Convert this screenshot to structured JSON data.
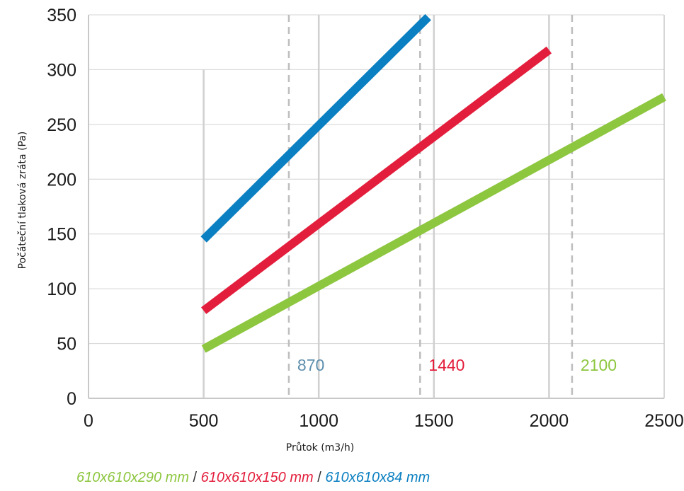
{
  "chart_data": {
    "type": "line",
    "xlabel": "Průtok (m3/h)",
    "ylabel": "Počáteční tlaková zráta (Pa)",
    "xlim": [
      0,
      2500
    ],
    "ylim": [
      0,
      350
    ],
    "xticks": [
      0,
      500,
      1000,
      1500,
      2000,
      2500
    ],
    "yticks": [
      0,
      50,
      100,
      150,
      200,
      250,
      300,
      350
    ],
    "grid": {
      "horizontal": true,
      "vertical": true
    },
    "series": [
      {
        "name": "610x610x290 mm",
        "color": "#8dc63f",
        "x": [
          500,
          2500
        ],
        "y": [
          45,
          275
        ]
      },
      {
        "name": "610x610x150 mm",
        "color": "#e31e3c",
        "x": [
          500,
          2000
        ],
        "y": [
          80,
          318
        ]
      },
      {
        "name": "610x610x84 mm",
        "color": "#0a7fc1",
        "x": [
          500,
          1475
        ],
        "y": [
          145,
          348
        ]
      }
    ],
    "reference_lines": [
      {
        "x": 870,
        "label": "870",
        "color": "#5f8fae"
      },
      {
        "x": 1440,
        "label": "1440",
        "color": "#e31e3c"
      },
      {
        "x": 2100,
        "label": "2100",
        "color": "#8dc63f"
      }
    ],
    "legend": {
      "placement": "bottom-left",
      "separator": "/",
      "entries": [
        "610x610x290 mm",
        "610x610x150 mm",
        "610x610x84 mm"
      ]
    }
  }
}
